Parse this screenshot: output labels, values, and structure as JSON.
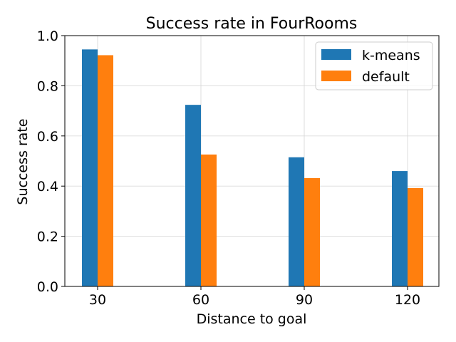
{
  "chart_data": {
    "type": "bar",
    "title": "Success rate in FourRooms",
    "xlabel": "Distance to goal",
    "ylabel": "Success rate",
    "categories": [
      "30",
      "60",
      "90",
      "120"
    ],
    "series": [
      {
        "name": "k-means",
        "color": "#1f77b4",
        "values": [
          0.945,
          0.724,
          0.515,
          0.46
        ]
      },
      {
        "name": "default",
        "color": "#ff7f0e",
        "values": [
          0.922,
          0.526,
          0.432,
          0.392
        ]
      }
    ],
    "ylim": [
      0,
      1.0
    ],
    "yticks": [
      "0.0",
      "0.2",
      "0.4",
      "0.6",
      "0.8",
      "1.0"
    ],
    "grid": true,
    "legend_position": "top-right"
  }
}
